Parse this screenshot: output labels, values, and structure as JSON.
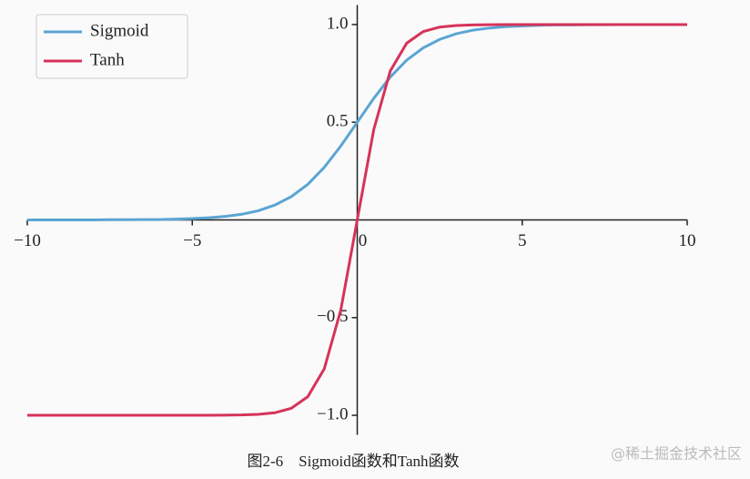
{
  "chart_data": {
    "type": "line",
    "caption": "图2-6　Sigmoid函数和Tanh函数",
    "watermark": "@稀土掘金技术社区",
    "x": [
      -10,
      -9.5,
      -9,
      -8.5,
      -8,
      -7.5,
      -7,
      -6.5,
      -6,
      -5.5,
      -5,
      -4.5,
      -4,
      -3.5,
      -3,
      -2.5,
      -2,
      -1.5,
      -1,
      -0.5,
      0,
      0.5,
      1,
      1.5,
      2,
      2.5,
      3,
      3.5,
      4,
      4.5,
      5,
      5.5,
      6,
      6.5,
      7,
      7.5,
      8,
      8.5,
      9,
      9.5,
      10
    ],
    "series": [
      {
        "name": "Sigmoid",
        "color": "#5aa5d4",
        "values": [
          0,
          0,
          0,
          0,
          0,
          0.001,
          0.001,
          0.002,
          0.002,
          0.004,
          0.007,
          0.011,
          0.018,
          0.029,
          0.047,
          0.076,
          0.119,
          0.182,
          0.269,
          0.378,
          0.5,
          0.622,
          0.731,
          0.818,
          0.881,
          0.924,
          0.953,
          0.971,
          0.982,
          0.989,
          0.993,
          0.996,
          0.998,
          0.998,
          0.999,
          0.999,
          1,
          1,
          1,
          1,
          1
        ]
      },
      {
        "name": "Tanh",
        "color": "#d6335a",
        "values": [
          -1,
          -1,
          -1,
          -1,
          -1,
          -1,
          -1,
          -1,
          -1,
          -1,
          -1,
          -1,
          -0.999,
          -0.998,
          -0.995,
          -0.987,
          -0.964,
          -0.905,
          -0.762,
          -0.462,
          0,
          0.462,
          0.762,
          0.905,
          0.964,
          0.987,
          0.995,
          0.998,
          0.999,
          1,
          1,
          1,
          1,
          1,
          1,
          1,
          1,
          1,
          1,
          1,
          1
        ]
      }
    ],
    "xlim": [
      -10,
      10
    ],
    "ylim": [
      -1.1,
      1.1
    ],
    "xticks": [
      {
        "value": -10,
        "label": "−10"
      },
      {
        "value": -5,
        "label": "−5"
      },
      0,
      5,
      10
    ],
    "yticks": [
      {
        "value": -1,
        "label": "−1.0"
      },
      {
        "value": -0.5,
        "label": "−0.5"
      },
      {
        "value": 0.5,
        "label": "0.5"
      },
      {
        "value": 1,
        "label": "1.0"
      }
    ],
    "legend": "upper left"
  }
}
